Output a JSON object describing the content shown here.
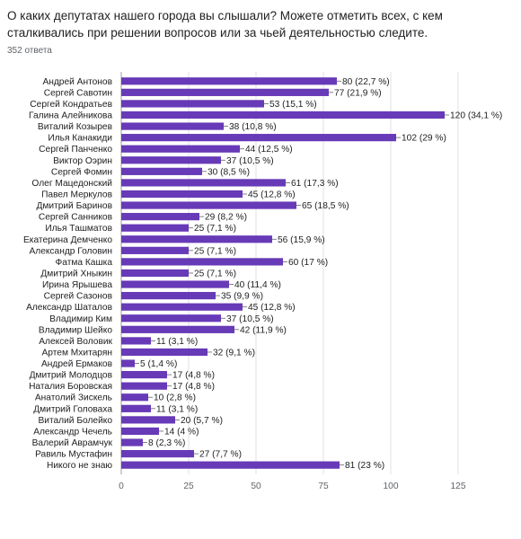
{
  "question": "О каких депутатах нашего города вы слышали? Можете отметить всех, с кем сталкивались при решении вопросов или за чьей деятельностью следите.",
  "response_count": "352 ответа",
  "colors": {
    "bar": "#673ab7",
    "grid": "#e0e0e0",
    "axis": "#9e9e9e"
  },
  "chart_data": {
    "type": "bar",
    "orientation": "horizontal",
    "categories": [
      "Андрей Антонов",
      "Сергей Савотин",
      "Сергей Кондратьев",
      "Галина Алейникова",
      "Виталий Козырев",
      "Илья Канакиди",
      "Сергей Панченко",
      "Виктор Оэрин",
      "Сергей Фомин",
      "Олег Мацедонский",
      "Павел Меркулов",
      "Дмитрий Баринов",
      "Сергей Санников",
      "Илья Ташматов",
      "Екатерина Демченко",
      "Александр Головин",
      "Фатма Кашка",
      "Дмитрий Хныкин",
      "Ирина Ярышева",
      "Сергей Сазонов",
      "Александр Шаталов",
      "Владимир Ким",
      "Владимир Шейко",
      "Алексей Воловик",
      "Артем Мхитарян",
      "Андрей Ермаков",
      "Дмитрий Молодцов",
      "Наталия Боровская",
      "Анатолий Зискель",
      "Дмитрий Головаха",
      "Виталий Болейко",
      "Александр Чечель",
      "Валерий Аврамчук",
      "Равиль Мустафин",
      "Никого не знаю"
    ],
    "values": [
      80,
      77,
      53,
      120,
      38,
      102,
      44,
      37,
      30,
      61,
      45,
      65,
      29,
      25,
      56,
      25,
      60,
      25,
      40,
      35,
      45,
      37,
      42,
      11,
      32,
      5,
      17,
      17,
      10,
      11,
      20,
      14,
      8,
      27,
      81
    ],
    "value_labels": [
      "80 (22,7 %)",
      "77 (21,9 %)",
      "53 (15,1 %)",
      "120 (34,1 %)",
      "38 (10,8 %)",
      "102 (29 %)",
      "44 (12,5 %)",
      "37 (10,5 %)",
      "30 (8,5 %)",
      "61 (17,3 %)",
      "45 (12,8 %)",
      "65 (18,5 %)",
      "29 (8,2 %)",
      "25 (7,1 %)",
      "56 (15,9 %)",
      "25 (7,1 %)",
      "60 (17 %)",
      "25 (7,1 %)",
      "40 (11,4 %)",
      "35 (9,9 %)",
      "45 (12,8 %)",
      "37 (10,5 %)",
      "42 (11,9 %)",
      "11 (3,1 %)",
      "32 (9,1 %)",
      "5 (1,4 %)",
      "17 (4,8 %)",
      "17 (4,8 %)",
      "10 (2,8 %)",
      "11 (3,1 %)",
      "20 (5,7 %)",
      "14 (4 %)",
      "8 (2,3 %)",
      "27 (7,7 %)",
      "81 (23 %)"
    ],
    "xlim": [
      0,
      125
    ],
    "xticks": [
      0,
      25,
      50,
      75,
      100,
      125
    ],
    "grid": true
  }
}
